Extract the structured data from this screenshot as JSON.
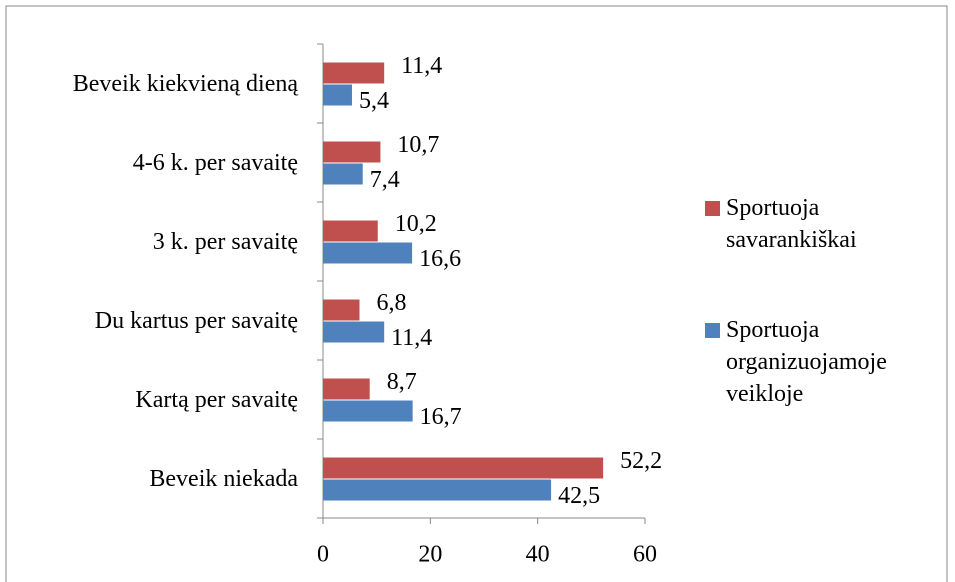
{
  "chart_data": {
    "type": "barh",
    "categories": [
      "Beveik kiekvieną dieną",
      "4-6 k. per savaitę",
      "3 k. per savaitę",
      "Du kartus per savaitę",
      "Kartą per savaitę",
      "Beveik niekada"
    ],
    "series": [
      {
        "name": "Sportuoja savarankiškai",
        "color": "#c0504d",
        "values": [
          11.4,
          10.7,
          10.2,
          6.8,
          8.7,
          52.2
        ],
        "value_labels": [
          "11,4",
          "10,7",
          "10,2",
          "6,8",
          "8,7",
          "52,2"
        ]
      },
      {
        "name": "Sportuoja organizuojamoje veikloje",
        "color": "#4f81bd",
        "values": [
          5.4,
          7.4,
          16.6,
          11.4,
          16.7,
          42.5
        ],
        "value_labels": [
          "5,4",
          "7,4",
          "16,6",
          "11,4",
          "16,7",
          "42,5"
        ]
      }
    ],
    "xlim": [
      0,
      60
    ],
    "xticks": [
      0,
      20,
      40,
      60
    ],
    "legend": "right"
  }
}
